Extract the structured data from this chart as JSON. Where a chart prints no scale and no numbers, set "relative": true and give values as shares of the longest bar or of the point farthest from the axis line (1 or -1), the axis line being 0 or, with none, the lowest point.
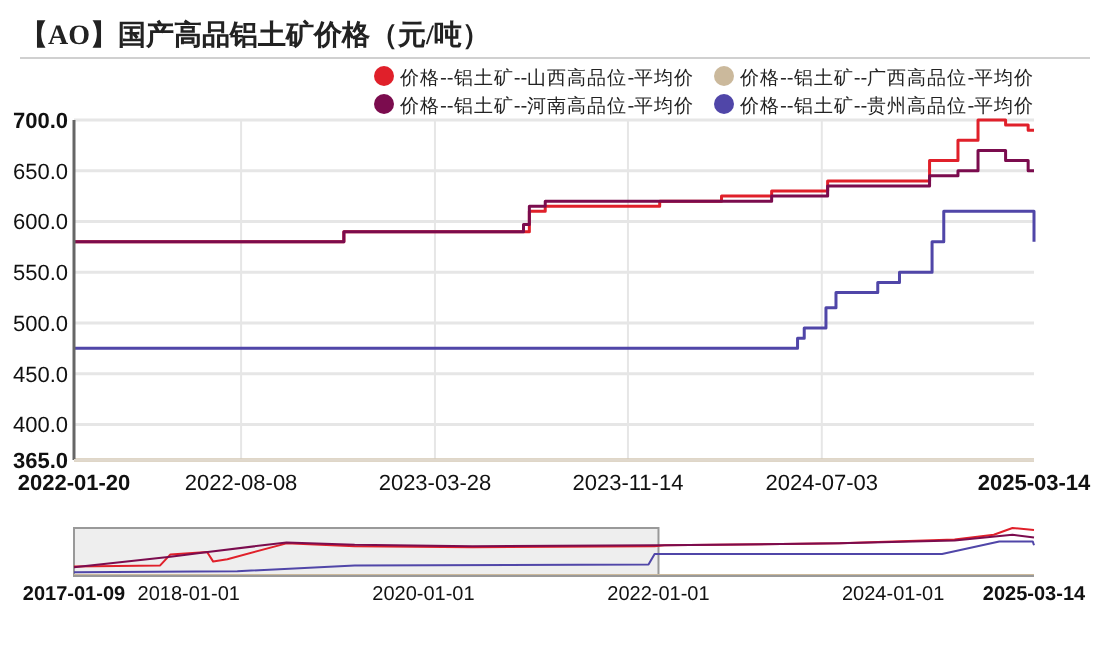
{
  "chart_data": [
    {
      "type": "step",
      "title": "【AO】国产高品铝土矿价格（元/吨）",
      "legend": "top right",
      "grid": true,
      "marker": "none",
      "line_style": "solid",
      "xlim": [
        "2022-01-20",
        "2025-03-14"
      ],
      "ylim": [
        365,
        700
      ],
      "xticks": [
        {
          "value": "2022-01-20",
          "label": "2022-01-20"
        },
        {
          "value": "2022-08-08",
          "label": "2022-08-08"
        },
        {
          "value": "2023-03-28",
          "label": "2023-03-28"
        },
        {
          "value": "2023-11-14",
          "label": "2023-11-14"
        },
        {
          "value": "2024-07-03",
          "label": "2024-07-03"
        },
        {
          "value": "2025-03-14",
          "label": "2025-03-14"
        }
      ],
      "yticks": [
        {
          "value": 365,
          "label": "365.0"
        },
        {
          "value": 400,
          "label": "400.0"
        },
        {
          "value": 450,
          "label": "450.0"
        },
        {
          "value": 500,
          "label": "500.0"
        },
        {
          "value": 550,
          "label": "550.0"
        },
        {
          "value": 600,
          "label": "600.0"
        },
        {
          "value": 650,
          "label": "650.0"
        },
        {
          "value": 700,
          "label": "700.0"
        }
      ],
      "series": [
        {
          "name": "价格--铝土矿--山西高品位-平均价",
          "color": "#e0202a",
          "x": [
            "2022-01-20",
            "2022-12-09",
            "2023-07-19",
            "2023-08-07",
            "2023-12-22",
            "2024-03-05",
            "2024-05-04",
            "2024-07-10",
            "2024-11-09",
            "2024-12-13",
            "2025-01-06",
            "2025-02-08",
            "2025-03-07",
            "2025-03-14"
          ],
          "values": [
            580,
            590,
            610,
            615,
            620,
            625,
            630,
            640,
            660,
            680,
            700,
            695,
            690,
            690
          ]
        },
        {
          "name": "价格--铝土矿--广西高品位-平均价",
          "color": "#cbb99c",
          "x": [
            "2022-01-20",
            "2025-03-14"
          ],
          "values": [
            365,
            365
          ]
        },
        {
          "name": "价格--铝土矿--河南高品位-平均价",
          "color": "#7b0c4e",
          "x": [
            "2022-01-20",
            "2022-12-09",
            "2023-07-12",
            "2023-07-19",
            "2023-08-07",
            "2024-05-04",
            "2024-07-10",
            "2024-11-09",
            "2024-12-13",
            "2025-01-06",
            "2025-02-08",
            "2025-03-07",
            "2025-03-14"
          ],
          "values": [
            580,
            590,
            597,
            615,
            620,
            625,
            635,
            645,
            650,
            670,
            660,
            650,
            650
          ]
        },
        {
          "name": "价格--铝土矿--贵州高品位-平均价",
          "color": "#5046a8",
          "x": [
            "2022-01-20",
            "2024-06-04",
            "2024-06-12",
            "2024-07-08",
            "2024-07-20",
            "2024-09-08",
            "2024-10-04",
            "2024-11-12",
            "2024-11-26",
            "2025-03-13",
            "2025-03-14"
          ],
          "values": [
            475,
            485,
            495,
            515,
            530,
            540,
            550,
            580,
            610,
            610,
            580
          ]
        }
      ]
    },
    {
      "type": "line",
      "relative": true,
      "grid": false,
      "xlim": [
        "2017-01-09",
        "2025-03-14"
      ],
      "xticks": [
        {
          "value": "2017-01-09",
          "label": "2017-01-09"
        },
        {
          "value": "2018-01-01",
          "label": "2018-01-01"
        },
        {
          "value": "2020-01-01",
          "label": "2020-01-01"
        },
        {
          "value": "2022-01-01",
          "label": "2022-01-01"
        },
        {
          "value": "2024-01-01",
          "label": "2024-01-01"
        },
        {
          "value": "2025-03-14",
          "label": "2025-03-14"
        }
      ],
      "bands": [
        {
          "axis": "x",
          "from": "2017-01-09",
          "to": "2022-01-01",
          "color": "#999999"
        }
      ],
      "series": [
        {
          "color": "#e0202a",
          "x": [
            "2017-01-09",
            "2017-10-04",
            "2017-11-05",
            "2018-02-27",
            "2018-03-18",
            "2018-05-01",
            "2018-11-01",
            "2019-06-01",
            "2020-06-01",
            "2021-12-20",
            "2022-01-20",
            "2023-07-19",
            "2024-07-10",
            "2024-11-09",
            "2025-01-06",
            "2025-03-14"
          ],
          "values": [
            0.2,
            0.22,
            0.45,
            0.5,
            0.3,
            0.35,
            0.68,
            0.62,
            0.6,
            0.62,
            0.64,
            0.68,
            0.76,
            0.86,
            1.0,
            0.96
          ]
        },
        {
          "color": "#cbb99c",
          "x": [
            "2017-01-09",
            "2025-03-14"
          ],
          "values": [
            0.02,
            0.02
          ]
        },
        {
          "color": "#7b0c4e",
          "x": [
            "2017-01-09",
            "2017-11-05",
            "2018-03-01",
            "2018-11-01",
            "2019-06-01",
            "2020-06-01",
            "2021-12-20",
            "2022-01-20",
            "2023-07-19",
            "2024-07-10",
            "2025-01-06",
            "2025-03-14"
          ],
          "values": [
            0.18,
            0.4,
            0.5,
            0.7,
            0.65,
            0.62,
            0.64,
            0.64,
            0.68,
            0.74,
            0.86,
            0.8
          ]
        },
        {
          "color": "#5046a8",
          "x": [
            "2017-01-09",
            "2018-06-01",
            "2019-06-01",
            "2021-12-01",
            "2021-12-20",
            "2024-06-01",
            "2024-11-26",
            "2025-03-10",
            "2025-03-14"
          ],
          "values": [
            0.08,
            0.1,
            0.22,
            0.24,
            0.46,
            0.46,
            0.72,
            0.72,
            0.64
          ]
        }
      ]
    }
  ]
}
